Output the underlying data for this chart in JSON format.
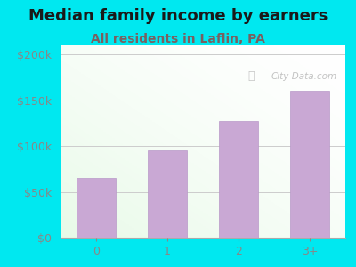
{
  "title": "Median family income by earners",
  "subtitle": "All residents in Laflin, PA",
  "categories": [
    "0",
    "1",
    "2",
    "3+"
  ],
  "values": [
    65000,
    95000,
    127000,
    160000
  ],
  "bar_color": "#c9a8d4",
  "bar_edge_color": "#b898c8",
  "background_color": "#00e8f0",
  "title_color": "#1a1a1a",
  "subtitle_color": "#7a6060",
  "tick_color": "#888888",
  "watermark_text": "City-Data.com",
  "yticks": [
    0,
    50000,
    100000,
    150000,
    200000
  ],
  "ytick_labels": [
    "$0",
    "$50k",
    "$100k",
    "$150k",
    "$200k"
  ],
  "ylim": [
    0,
    210000
  ],
  "title_fontsize": 13,
  "subtitle_fontsize": 10,
  "tick_fontsize": 9,
  "grid_color": "#cccccc"
}
